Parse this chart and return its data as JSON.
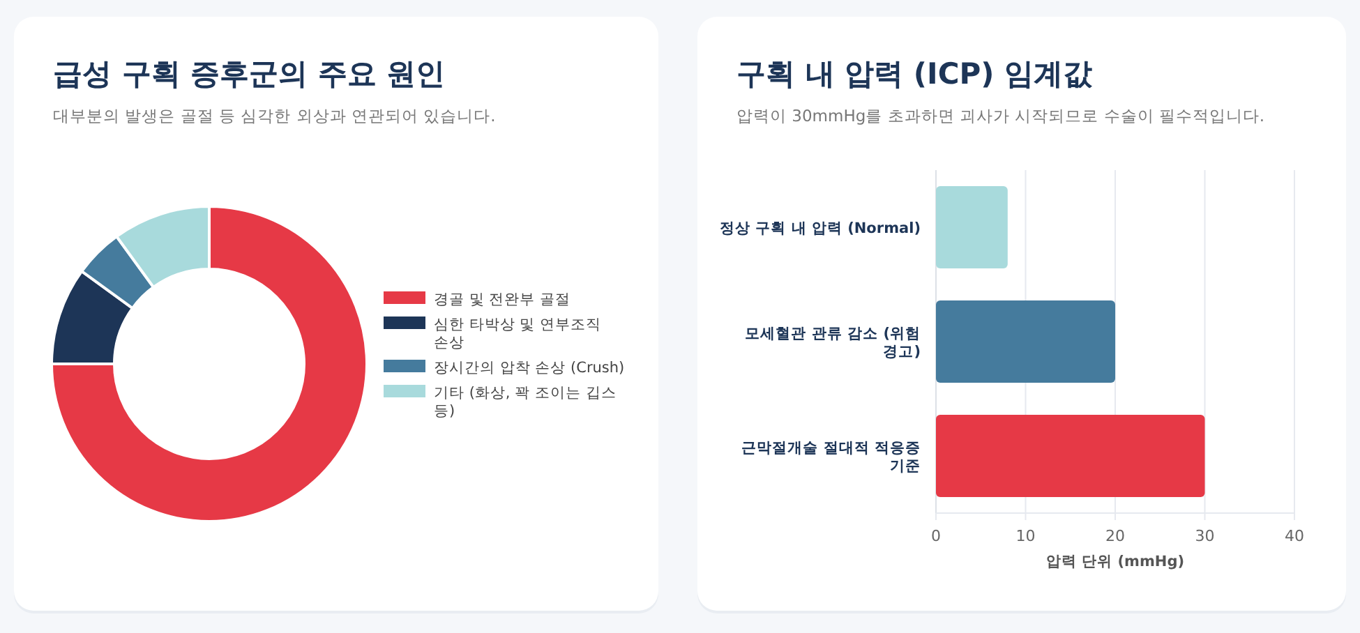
{
  "chart_data": [
    {
      "type": "donut",
      "title": "급성 구획 증후군의 주요 원인",
      "subtitle": "대부분의 발생은 골절 등 심각한 외상과 연관되어 있습니다.",
      "categories": [
        "경골 및 전완부 골절",
        "심한 타박상 및 연부조직 손상",
        "장시간의 압착 손상 (Crush)",
        "기타 (화상, 꽉 조이는 깁스 등)"
      ],
      "values": [
        75,
        10,
        5,
        10
      ],
      "colors": [
        "#e63946",
        "#1d3557",
        "#457b9d",
        "#a8dadc"
      ],
      "legend": "right"
    },
    {
      "type": "bar",
      "orientation": "horizontal",
      "title": "구획 내 압력 (ICP) 임계값",
      "subtitle": "압력이 30mmHg를 초과하면 괴사가 시작되므로 수술이 필수적입니다.",
      "categories": [
        "정상 구획 내 압력 (Normal)",
        "모세혈관 관류 감소 (위험 경고)",
        "근막절개술 절대적 적응증 기준"
      ],
      "values": [
        8,
        20,
        30
      ],
      "colors": [
        "#a8dadc",
        "#457b9d",
        "#e63946"
      ],
      "xlabel": "압력 단위 (mmHg)",
      "xlim": [
        0,
        40
      ],
      "xticks": [
        0,
        10,
        20,
        30,
        40
      ],
      "grid": "x"
    }
  ]
}
